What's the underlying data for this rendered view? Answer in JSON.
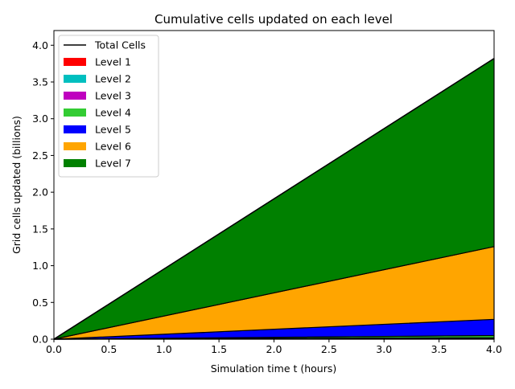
{
  "chart_data": {
    "type": "area",
    "title": "Cumulative cells updated on each level",
    "xlabel": "Simulation time t (hours)",
    "ylabel": "Grid cells updated (billions)",
    "xlim": [
      0,
      4
    ],
    "ylim": [
      0,
      4.2
    ],
    "xticks": [
      "0.0",
      "0.5",
      "1.0",
      "1.5",
      "2.0",
      "2.5",
      "3.0",
      "3.5",
      "4.0"
    ],
    "yticks": [
      "0.0",
      "0.5",
      "1.0",
      "1.5",
      "2.0",
      "2.5",
      "3.0",
      "3.5",
      "4.0"
    ],
    "grid": false,
    "legend_position": "upper left",
    "x": [
      0,
      4
    ],
    "series": [
      {
        "name": "Level 1",
        "color": "#ff0000",
        "values": [
          0,
          0.004
        ]
      },
      {
        "name": "Level 2",
        "color": "#00bfbf",
        "values": [
          0,
          0.006
        ]
      },
      {
        "name": "Level 3",
        "color": "#bf00bf",
        "values": [
          0,
          0.01
        ]
      },
      {
        "name": "Level 4",
        "color": "#33cc33",
        "values": [
          0,
          0.03
        ]
      },
      {
        "name": "Level 5",
        "color": "#0000ff",
        "values": [
          0,
          0.22
        ]
      },
      {
        "name": "Level 6",
        "color": "#ffa500",
        "values": [
          0,
          0.99
        ]
      },
      {
        "name": "Level 7",
        "color": "#008000",
        "values": [
          0,
          2.56
        ]
      }
    ],
    "total": {
      "name": "Total Cells",
      "color": "#000000",
      "values": [
        0,
        3.82
      ]
    }
  }
}
